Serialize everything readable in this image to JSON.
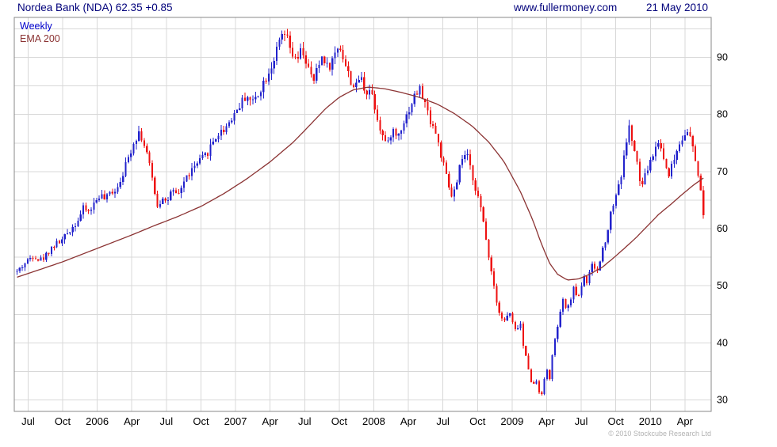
{
  "header": {
    "title": "Nordea Bank (NDA) 62.35 +0.85",
    "website": "www.fullermoney.com",
    "date": "21 May 2010"
  },
  "legend": {
    "series1": "Weekly",
    "series2": "EMA 200"
  },
  "footer": {
    "copyright": "© 2010 Stockcube Research Ltd"
  },
  "colors": {
    "header_text": "#00007b",
    "up": "#2222cc",
    "down": "#ee1111",
    "ema": "#8b3333",
    "grid": "#d8d8d8",
    "border": "#888888",
    "axis_text": "#000000"
  },
  "chart_data": {
    "type": "candlestick",
    "title": "Nordea Bank (NDA) 62.35 +0.85",
    "instrument": "Nordea Bank (NDA)",
    "timeframe": "Weekly",
    "overlay": "EMA 200",
    "last_price": 62.35,
    "change": "+0.85",
    "date": "21 May 2010",
    "xlabel": "",
    "ylabel": "",
    "x_domain": [
      2005.4,
      2010.44
    ],
    "y_domain": [
      28,
      97
    ],
    "y_grid_step": 5,
    "y_tick_labels": [
      30,
      40,
      50,
      60,
      70,
      80,
      90
    ],
    "x_ticks": [
      {
        "t": 2005.5,
        "label": "Jul"
      },
      {
        "t": 2005.75,
        "label": "Oct"
      },
      {
        "t": 2006.0,
        "label": "2006"
      },
      {
        "t": 2006.25,
        "label": "Apr"
      },
      {
        "t": 2006.5,
        "label": "Jul"
      },
      {
        "t": 2006.75,
        "label": "Oct"
      },
      {
        "t": 2007.0,
        "label": "2007"
      },
      {
        "t": 2007.25,
        "label": "Apr"
      },
      {
        "t": 2007.5,
        "label": "Jul"
      },
      {
        "t": 2007.75,
        "label": "Oct"
      },
      {
        "t": 2008.0,
        "label": "2008"
      },
      {
        "t": 2008.25,
        "label": "Apr"
      },
      {
        "t": 2008.5,
        "label": "Jul"
      },
      {
        "t": 2008.75,
        "label": "Oct"
      },
      {
        "t": 2009.0,
        "label": "2009"
      },
      {
        "t": 2009.25,
        "label": "Apr"
      },
      {
        "t": 2009.5,
        "label": "Jul"
      },
      {
        "t": 2009.75,
        "label": "Oct"
      },
      {
        "t": 2010.0,
        "label": "2010"
      },
      {
        "t": 2010.25,
        "label": "Apr"
      }
    ],
    "price_anchors": [
      [
        2005.42,
        52.5
      ],
      [
        2005.46,
        53.5
      ],
      [
        2005.5,
        54.5
      ],
      [
        2005.54,
        55.5
      ],
      [
        2005.58,
        54.5
      ],
      [
        2005.62,
        55.0
      ],
      [
        2005.66,
        56.5
      ],
      [
        2005.71,
        57.5
      ],
      [
        2005.75,
        58.0
      ],
      [
        2005.79,
        59.5
      ],
      [
        2005.83,
        60.5
      ],
      [
        2005.87,
        62.0
      ],
      [
        2005.9,
        63.5
      ],
      [
        2005.94,
        63.0
      ],
      [
        2005.98,
        64.5
      ],
      [
        2006.02,
        66.0
      ],
      [
        2006.06,
        65.0
      ],
      [
        2006.1,
        66.5
      ],
      [
        2006.14,
        67.0
      ],
      [
        2006.18,
        69.5
      ],
      [
        2006.22,
        72.0
      ],
      [
        2006.26,
        75.0
      ],
      [
        2006.3,
        77.0
      ],
      [
        2006.33,
        75.5
      ],
      [
        2006.36,
        73.0
      ],
      [
        2006.4,
        68.5
      ],
      [
        2006.44,
        63.5
      ],
      [
        2006.47,
        66.0
      ],
      [
        2006.5,
        64.5
      ],
      [
        2006.54,
        66.5
      ],
      [
        2006.58,
        65.5
      ],
      [
        2006.62,
        68.0
      ],
      [
        2006.66,
        69.5
      ],
      [
        2006.71,
        71.0
      ],
      [
        2006.75,
        72.0
      ],
      [
        2006.79,
        73.0
      ],
      [
        2006.83,
        75.0
      ],
      [
        2006.87,
        76.5
      ],
      [
        2006.92,
        77.5
      ],
      [
        2006.96,
        79.0
      ],
      [
        2007.0,
        80.5
      ],
      [
        2007.04,
        82.0
      ],
      [
        2007.08,
        83.5
      ],
      [
        2007.12,
        82.0
      ],
      [
        2007.17,
        84.0
      ],
      [
        2007.21,
        86.0
      ],
      [
        2007.25,
        88.0
      ],
      [
        2007.29,
        90.5
      ],
      [
        2007.33,
        93.5
      ],
      [
        2007.36,
        94.0
      ],
      [
        2007.4,
        91.0
      ],
      [
        2007.44,
        89.0
      ],
      [
        2007.48,
        91.5
      ],
      [
        2007.52,
        88.5
      ],
      [
        2007.56,
        85.5
      ],
      [
        2007.6,
        88.5
      ],
      [
        2007.63,
        90.5
      ],
      [
        2007.67,
        88.0
      ],
      [
        2007.71,
        90.0
      ],
      [
        2007.75,
        92.5
      ],
      [
        2007.79,
        89.0
      ],
      [
        2007.83,
        86.0
      ],
      [
        2007.87,
        84.5
      ],
      [
        2007.9,
        87.0
      ],
      [
        2007.94,
        84.0
      ],
      [
        2007.98,
        84.5
      ],
      [
        2008.02,
        80.0
      ],
      [
        2008.06,
        76.5
      ],
      [
        2008.1,
        74.5
      ],
      [
        2008.13,
        77.5
      ],
      [
        2008.17,
        76.0
      ],
      [
        2008.21,
        78.5
      ],
      [
        2008.25,
        80.5
      ],
      [
        2008.29,
        83.0
      ],
      [
        2008.33,
        84.5
      ],
      [
        2008.37,
        82.0
      ],
      [
        2008.4,
        79.5
      ],
      [
        2008.44,
        77.5
      ],
      [
        2008.48,
        73.5
      ],
      [
        2008.52,
        69.5
      ],
      [
        2008.56,
        65.5
      ],
      [
        2008.6,
        67.5
      ],
      [
        2008.63,
        72.0
      ],
      [
        2008.67,
        73.0
      ],
      [
        2008.71,
        69.5
      ],
      [
        2008.75,
        66.0
      ],
      [
        2008.79,
        61.5
      ],
      [
        2008.83,
        55.5
      ],
      [
        2008.87,
        50.0
      ],
      [
        2008.9,
        46.0
      ],
      [
        2008.94,
        43.5
      ],
      [
        2008.98,
        45.5
      ],
      [
        2009.02,
        42.0
      ],
      [
        2009.06,
        43.5
      ],
      [
        2009.08,
        39.5
      ],
      [
        2009.12,
        35.5
      ],
      [
        2009.15,
        32.0
      ],
      [
        2009.17,
        34.0
      ],
      [
        2009.19,
        31.8
      ],
      [
        2009.21,
        30.8
      ],
      [
        2009.23,
        33.0
      ],
      [
        2009.25,
        35.5
      ],
      [
        2009.27,
        33.5
      ],
      [
        2009.29,
        37.5
      ],
      [
        2009.33,
        43.0
      ],
      [
        2009.37,
        47.5
      ],
      [
        2009.4,
        45.5
      ],
      [
        2009.44,
        49.5
      ],
      [
        2009.48,
        48.0
      ],
      [
        2009.52,
        52.0
      ],
      [
        2009.54,
        50.5
      ],
      [
        2009.58,
        53.5
      ],
      [
        2009.62,
        52.5
      ],
      [
        2009.65,
        56.0
      ],
      [
        2009.69,
        59.5
      ],
      [
        2009.71,
        62.5
      ],
      [
        2009.75,
        66.0
      ],
      [
        2009.79,
        69.5
      ],
      [
        2009.81,
        72.5
      ],
      [
        2009.83,
        76.0
      ],
      [
        2009.85,
        78.0
      ],
      [
        2009.87,
        75.0
      ],
      [
        2009.9,
        72.0
      ],
      [
        2009.92,
        68.5
      ],
      [
        2009.94,
        67.5
      ],
      [
        2009.98,
        70.5
      ],
      [
        2010.02,
        73.0
      ],
      [
        2010.06,
        75.5
      ],
      [
        2010.1,
        72.0
      ],
      [
        2010.13,
        69.5
      ],
      [
        2010.17,
        72.0
      ],
      [
        2010.21,
        75.0
      ],
      [
        2010.25,
        77.0
      ],
      [
        2010.29,
        76.0
      ],
      [
        2010.31,
        73.5
      ],
      [
        2010.33,
        71.5
      ],
      [
        2010.36,
        67.5
      ],
      [
        2010.38,
        64.0
      ],
      [
        2010.4,
        62.35
      ]
    ],
    "ema_anchors": [
      [
        2005.42,
        51.5
      ],
      [
        2005.58,
        52.8
      ],
      [
        2005.75,
        54.2
      ],
      [
        2005.92,
        55.8
      ],
      [
        2006.08,
        57.3
      ],
      [
        2006.25,
        58.9
      ],
      [
        2006.42,
        60.6
      ],
      [
        2006.58,
        62.1
      ],
      [
        2006.75,
        63.9
      ],
      [
        2006.92,
        66.2
      ],
      [
        2007.08,
        68.7
      ],
      [
        2007.25,
        71.7
      ],
      [
        2007.42,
        75.2
      ],
      [
        2007.54,
        78.2
      ],
      [
        2007.65,
        81.0
      ],
      [
        2007.75,
        83.0
      ],
      [
        2007.85,
        84.3
      ],
      [
        2007.96,
        84.8
      ],
      [
        2008.08,
        84.5
      ],
      [
        2008.21,
        83.8
      ],
      [
        2008.33,
        83.0
      ],
      [
        2008.46,
        81.8
      ],
      [
        2008.58,
        80.2
      ],
      [
        2008.71,
        78.0
      ],
      [
        2008.83,
        75.2
      ],
      [
        2008.94,
        71.8
      ],
      [
        2009.06,
        66.5
      ],
      [
        2009.15,
        61.5
      ],
      [
        2009.21,
        57.5
      ],
      [
        2009.27,
        54.0
      ],
      [
        2009.33,
        52.0
      ],
      [
        2009.4,
        51.0
      ],
      [
        2009.48,
        51.2
      ],
      [
        2009.56,
        52.0
      ],
      [
        2009.65,
        53.2
      ],
      [
        2009.73,
        54.8
      ],
      [
        2009.81,
        56.5
      ],
      [
        2009.9,
        58.5
      ],
      [
        2009.98,
        60.5
      ],
      [
        2010.06,
        62.5
      ],
      [
        2010.15,
        64.3
      ],
      [
        2010.23,
        66.0
      ],
      [
        2010.31,
        67.6
      ],
      [
        2010.42,
        69.5
      ]
    ],
    "weeks_per_year": 52.18,
    "candle_wiggle_pct": 2.0,
    "wick_pct": 1.3,
    "seed": 42,
    "grid": true,
    "legend_position": "top-left"
  }
}
